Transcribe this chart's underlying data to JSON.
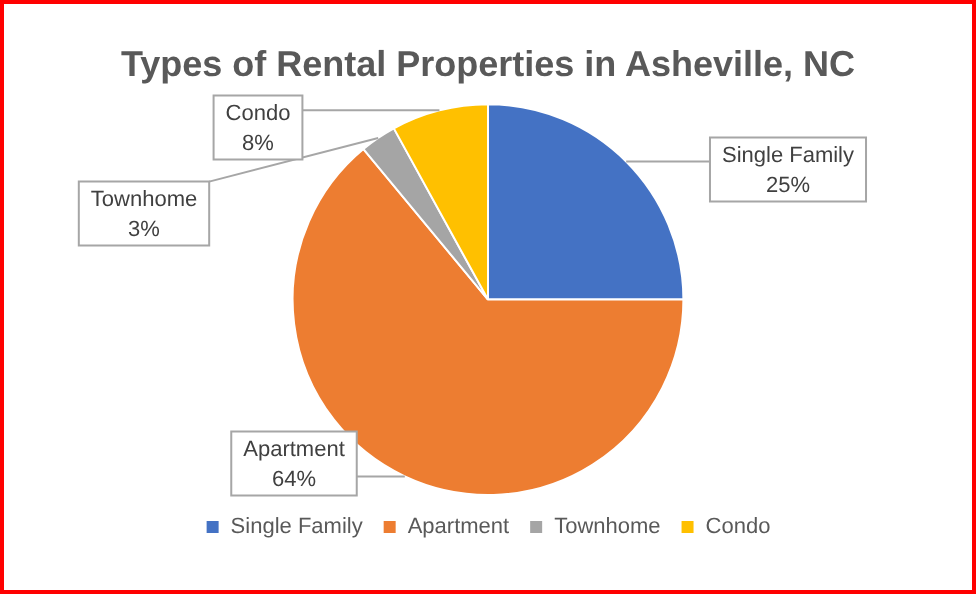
{
  "chart_data": {
    "type": "pie",
    "title": "Types of Rental Properties in Asheville, NC",
    "categories": [
      "Single Family",
      "Apartment",
      "Townhome",
      "Condo"
    ],
    "values": [
      25,
      64,
      3,
      8
    ],
    "colors": [
      "#4472c4",
      "#ed7d31",
      "#a5a5a5",
      "#ffc000"
    ],
    "value_labels": [
      "25%",
      "64%",
      "3%",
      "8%"
    ],
    "legend": "bottom"
  }
}
